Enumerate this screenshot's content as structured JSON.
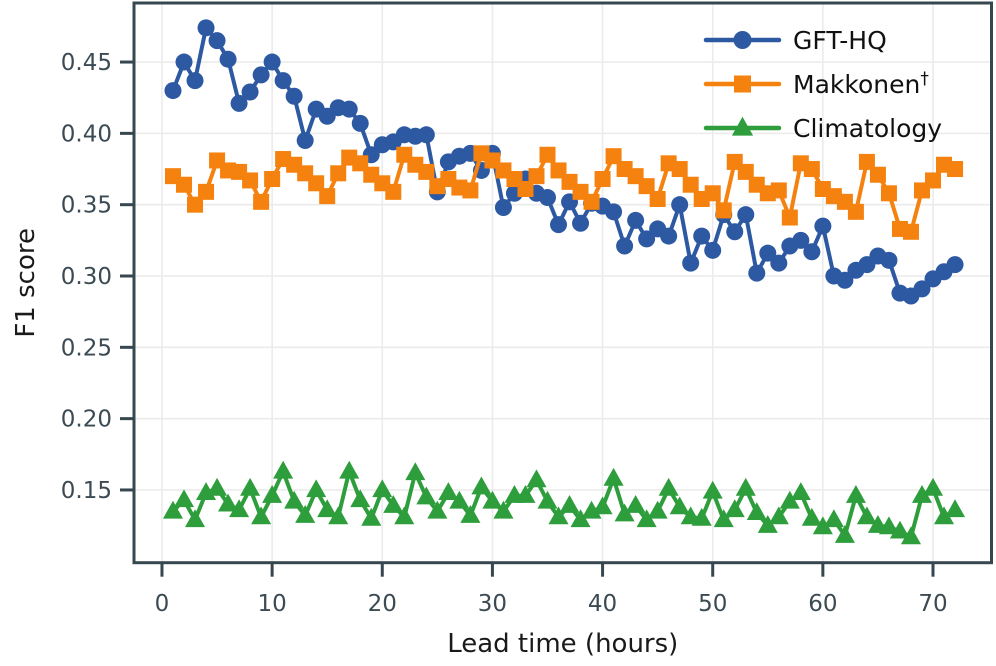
{
  "style": {
    "background": "#ffffff",
    "spine_color": "#37474f",
    "tick_color": "#37474f",
    "tick_label_color": "#3c4b53",
    "axis_label_color": "#1a1a1a",
    "legend_text_color": "#111111",
    "grid_color": "#ebebeb",
    "series_colors": {
      "gft_hq": "#2d59a2",
      "makkonen": "#f5820f",
      "climatology": "#2e9e3c"
    }
  },
  "chart_data": {
    "type": "line",
    "title": "",
    "xlabel": "Lead time (hours)",
    "ylabel": "F1 score",
    "xlim": [
      -2.54,
      75.31
    ],
    "ylim": [
      0.099,
      0.4914
    ],
    "x_ticks": [
      0,
      10,
      20,
      30,
      40,
      50,
      60,
      70
    ],
    "y_ticks": [
      0.15,
      0.2,
      0.25,
      0.3,
      0.35,
      0.4,
      0.45
    ],
    "grid": true,
    "legend_position": "upper right",
    "x": [
      1,
      2,
      3,
      4,
      5,
      6,
      7,
      8,
      9,
      10,
      11,
      12,
      13,
      14,
      15,
      16,
      17,
      18,
      19,
      20,
      21,
      22,
      23,
      24,
      25,
      26,
      27,
      28,
      29,
      30,
      31,
      32,
      33,
      34,
      35,
      36,
      37,
      38,
      39,
      40,
      41,
      42,
      43,
      44,
      45,
      46,
      47,
      48,
      49,
      50,
      51,
      52,
      53,
      54,
      55,
      56,
      57,
      58,
      59,
      60,
      61,
      62,
      63,
      64,
      65,
      66,
      67,
      68,
      69,
      70,
      71,
      72
    ],
    "series": [
      {
        "name": "GFT-HQ",
        "name_superscript": "",
        "marker": "circle",
        "color_key": "gft_hq",
        "values": [
          0.43,
          0.45,
          0.437,
          0.474,
          0.465,
          0.452,
          0.421,
          0.429,
          0.441,
          0.45,
          0.437,
          0.426,
          0.395,
          0.417,
          0.412,
          0.418,
          0.417,
          0.407,
          0.385,
          0.392,
          0.394,
          0.399,
          0.398,
          0.399,
          0.359,
          0.38,
          0.384,
          0.386,
          0.374,
          0.386,
          0.348,
          0.358,
          0.368,
          0.358,
          0.355,
          0.336,
          0.352,
          0.337,
          0.351,
          0.349,
          0.345,
          0.321,
          0.339,
          0.326,
          0.333,
          0.328,
          0.35,
          0.309,
          0.328,
          0.318,
          0.343,
          0.331,
          0.343,
          0.302,
          0.316,
          0.309,
          0.321,
          0.325,
          0.317,
          0.335,
          0.3,
          0.297,
          0.304,
          0.308,
          0.314,
          0.311,
          0.288,
          0.286,
          0.291,
          0.298,
          0.303,
          0.308
        ]
      },
      {
        "name": "Makkonen",
        "name_superscript": "†",
        "marker": "square",
        "color_key": "makkonen",
        "values": [
          0.37,
          0.364,
          0.35,
          0.359,
          0.381,
          0.374,
          0.373,
          0.367,
          0.352,
          0.368,
          0.382,
          0.378,
          0.372,
          0.365,
          0.356,
          0.372,
          0.383,
          0.379,
          0.371,
          0.365,
          0.359,
          0.385,
          0.378,
          0.373,
          0.363,
          0.368,
          0.362,
          0.36,
          0.386,
          0.381,
          0.374,
          0.368,
          0.361,
          0.37,
          0.385,
          0.374,
          0.366,
          0.359,
          0.352,
          0.368,
          0.384,
          0.375,
          0.37,
          0.363,
          0.354,
          0.379,
          0.375,
          0.364,
          0.354,
          0.358,
          0.346,
          0.38,
          0.373,
          0.364,
          0.358,
          0.36,
          0.341,
          0.379,
          0.375,
          0.361,
          0.356,
          0.352,
          0.345,
          0.38,
          0.371,
          0.358,
          0.333,
          0.331,
          0.36,
          0.367,
          0.378,
          0.375
        ]
      },
      {
        "name": "Climatology",
        "name_superscript": "",
        "marker": "triangle",
        "color_key": "climatology",
        "values": [
          0.135,
          0.143,
          0.129,
          0.148,
          0.151,
          0.14,
          0.136,
          0.151,
          0.131,
          0.146,
          0.163,
          0.142,
          0.132,
          0.15,
          0.136,
          0.131,
          0.163,
          0.143,
          0.13,
          0.15,
          0.139,
          0.131,
          0.162,
          0.145,
          0.135,
          0.148,
          0.142,
          0.132,
          0.152,
          0.142,
          0.135,
          0.146,
          0.146,
          0.157,
          0.142,
          0.131,
          0.139,
          0.129,
          0.135,
          0.138,
          0.158,
          0.133,
          0.139,
          0.129,
          0.135,
          0.151,
          0.138,
          0.131,
          0.13,
          0.149,
          0.129,
          0.136,
          0.151,
          0.134,
          0.125,
          0.131,
          0.142,
          0.148,
          0.13,
          0.124,
          0.129,
          0.118,
          0.146,
          0.131,
          0.125,
          0.124,
          0.121,
          0.117,
          0.146,
          0.151,
          0.131,
          0.136
        ]
      }
    ]
  }
}
